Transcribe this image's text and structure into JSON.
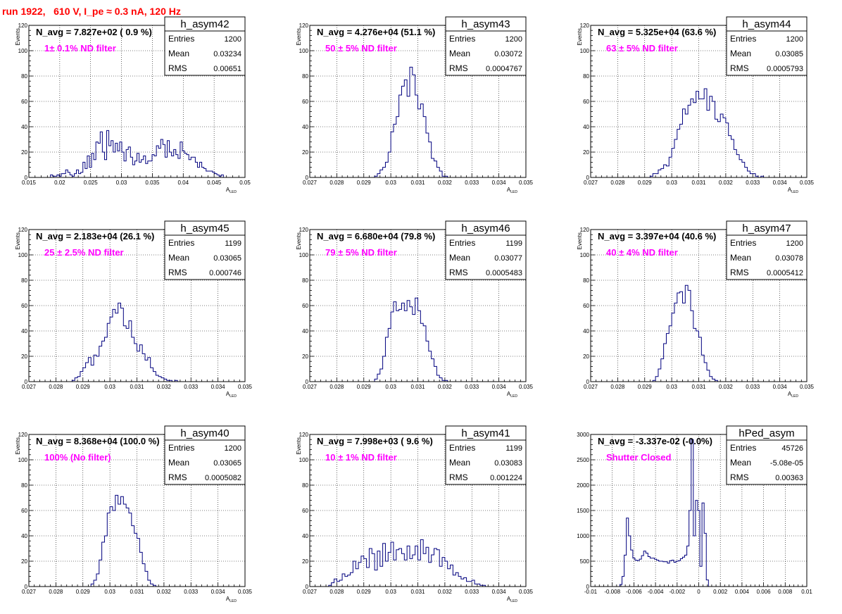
{
  "page_title": "run 1922,   610 V, I_pe ≈ 0.3 nA, 120 Hz",
  "colors": {
    "histogram": "#00007f",
    "annotation": "#ff00ff",
    "title": "#ff0000",
    "grid": "#000000"
  },
  "chart_data": [
    {
      "type": "histogram",
      "name": "h_asym42",
      "stats": [
        [
          "Entries",
          "1200"
        ],
        [
          "Mean",
          "0.03234"
        ],
        [
          "RMS",
          "0.00651"
        ]
      ],
      "navg_label": "N_avg = 7.827e+02 ( 0.9 %)",
      "filter_label": "1± 0.1% ND filter",
      "xlabel": "A_LED",
      "ylabel": "Events",
      "xlim": [
        0.015,
        0.05
      ],
      "ylim": [
        0,
        120
      ],
      "xticks": [
        "0.015",
        "0.02",
        "0.025",
        "0.03",
        "0.035",
        "0.04",
        "0.045",
        "0.05"
      ],
      "yticks": [
        "0",
        "20",
        "40",
        "60",
        "80",
        "100",
        "120"
      ],
      "grid": true,
      "binned_from": 0.0185,
      "bin_width": 0.00035,
      "counts": [
        2,
        1,
        1,
        2,
        1,
        3,
        3,
        6,
        4,
        2,
        1,
        3,
        6,
        3,
        4,
        12,
        7,
        17,
        8,
        19,
        14,
        28,
        27,
        36,
        20,
        14,
        37,
        25,
        29,
        20,
        27,
        21,
        28,
        20,
        13,
        22,
        24,
        16,
        10,
        13,
        19,
        12,
        14,
        17,
        11,
        13,
        13,
        18,
        17,
        25,
        23,
        30,
        26,
        16,
        29,
        20,
        17,
        22,
        18,
        15,
        28,
        21,
        19,
        18,
        14,
        16,
        16,
        12,
        8,
        12,
        8,
        7,
        5,
        5,
        5,
        4,
        3,
        2,
        1,
        2
      ]
    },
    {
      "type": "histogram",
      "name": "h_asym43",
      "stats": [
        [
          "Entries",
          "1200"
        ],
        [
          "Mean",
          "0.03072"
        ],
        [
          "RMS",
          "0.0004767"
        ]
      ],
      "navg_label": "N_avg = 4.276e+04 (51.1 %)",
      "filter_label": "50 ± 5% ND filter",
      "xlabel": "A_LED",
      "ylabel": "Events",
      "xlim": [
        0.027,
        0.035
      ],
      "ylim": [
        0,
        120
      ],
      "xticks": [
        "0.027",
        "0.028",
        "0.029",
        "0.03",
        "0.031",
        "0.032",
        "0.033",
        "0.034",
        "0.035"
      ],
      "yticks": [
        "0",
        "20",
        "40",
        "60",
        "80",
        "100",
        "120"
      ],
      "grid": true,
      "binned_from": 0.0294,
      "bin_width": 0.0001,
      "counts": [
        1,
        3,
        6,
        8,
        12,
        20,
        36,
        42,
        48,
        65,
        72,
        77,
        64,
        87,
        81,
        65,
        54,
        58,
        48,
        35,
        28,
        15,
        13,
        8,
        5,
        1,
        1,
        0,
        0,
        0
      ]
    },
    {
      "type": "histogram",
      "name": "h_asym44",
      "stats": [
        [
          "Entries",
          "1200"
        ],
        [
          "Mean",
          "0.03085"
        ],
        [
          "RMS",
          "0.0005793"
        ]
      ],
      "navg_label": "N_avg = 5.325e+04 (63.6 %)",
      "filter_label": "63 ± 5% ND filter",
      "xlabel": "A_LED",
      "ylabel": "Events",
      "xlim": [
        0.027,
        0.035
      ],
      "ylim": [
        0,
        120
      ],
      "xticks": [
        "0.027",
        "0.028",
        "0.029",
        "0.03",
        "0.031",
        "0.032",
        "0.033",
        "0.034",
        "0.035"
      ],
      "yticks": [
        "0",
        "20",
        "40",
        "60",
        "80",
        "100",
        "120"
      ],
      "grid": true,
      "binned_from": 0.0292,
      "bin_width": 0.0001,
      "counts": [
        1,
        3,
        3,
        6,
        7,
        10,
        9,
        16,
        23,
        30,
        38,
        42,
        54,
        50,
        57,
        62,
        59,
        68,
        62,
        62,
        70,
        53,
        64,
        60,
        46,
        44,
        50,
        47,
        43,
        33,
        30,
        22,
        18,
        14,
        12,
        8,
        5,
        3,
        3,
        1,
        0,
        1
      ]
    },
    {
      "type": "histogram",
      "name": "h_asym45",
      "stats": [
        [
          "Entries",
          "1199"
        ],
        [
          "Mean",
          "0.03065"
        ],
        [
          "RMS",
          "0.000746"
        ]
      ],
      "navg_label": "N_avg = 2.183e+04 (26.1 %)",
      "filter_label": "25 ± 2.5% ND filter",
      "xlabel": "A_LED",
      "ylabel": "Events",
      "xlim": [
        0.027,
        0.035
      ],
      "ylim": [
        0,
        120
      ],
      "xticks": [
        "0.027",
        "0.028",
        "0.029",
        "0.03",
        "0.031",
        "0.032",
        "0.033",
        "0.034",
        "0.035"
      ],
      "yticks": [
        "0",
        "20",
        "40",
        "60",
        "80",
        "100",
        "120"
      ],
      "grid": true,
      "binned_from": 0.0286,
      "bin_width": 0.0001,
      "counts": [
        1,
        3,
        4,
        8,
        11,
        15,
        19,
        13,
        21,
        20,
        28,
        32,
        35,
        46,
        51,
        57,
        54,
        62,
        58,
        44,
        42,
        48,
        35,
        30,
        24,
        29,
        22,
        17,
        19,
        11,
        8,
        5,
        4,
        3,
        2,
        1,
        1,
        0,
        1
      ]
    },
    {
      "type": "histogram",
      "name": "h_asym46",
      "stats": [
        [
          "Entries",
          "1199"
        ],
        [
          "Mean",
          "0.03077"
        ],
        [
          "RMS",
          "0.0005483"
        ]
      ],
      "navg_label": "N_avg = 6.680e+04 (79.8 %)",
      "filter_label": "79 ± 5% ND filter",
      "xlabel": "A_LED",
      "ylabel": "Events",
      "xlim": [
        0.027,
        0.035
      ],
      "ylim": [
        0,
        120
      ],
      "xticks": [
        "0.027",
        "0.028",
        "0.029",
        "0.03",
        "0.031",
        "0.032",
        "0.033",
        "0.034",
        "0.035"
      ],
      "yticks": [
        "0",
        "20",
        "40",
        "60",
        "80",
        "100",
        "120"
      ],
      "grid": true,
      "binned_from": 0.0294,
      "bin_width": 0.0001,
      "counts": [
        2,
        6,
        10,
        20,
        35,
        42,
        55,
        63,
        56,
        57,
        62,
        56,
        64,
        59,
        53,
        66,
        56,
        46,
        44,
        32,
        24,
        18,
        12,
        5,
        3,
        1,
        1,
        0
      ]
    },
    {
      "type": "histogram",
      "name": "h_asym47",
      "stats": [
        [
          "Entries",
          "1200"
        ],
        [
          "Mean",
          "0.03078"
        ],
        [
          "RMS",
          "0.0005412"
        ]
      ],
      "navg_label": "N_avg = 3.397e+04 (40.6 %)",
      "filter_label": "40 ± 4% ND filter",
      "xlabel": "A_LED",
      "ylabel": "Events",
      "xlim": [
        0.027,
        0.035
      ],
      "ylim": [
        0,
        120
      ],
      "xticks": [
        "0.027",
        "0.028",
        "0.029",
        "0.03",
        "0.031",
        "0.032",
        "0.033",
        "0.034",
        "0.035"
      ],
      "yticks": [
        "0",
        "20",
        "40",
        "60",
        "80",
        "100",
        "120"
      ],
      "grid": true,
      "binned_from": 0.0293,
      "bin_width": 0.0001,
      "counts": [
        1,
        4,
        10,
        18,
        30,
        38,
        44,
        54,
        62,
        70,
        71,
        62,
        76,
        72,
        56,
        42,
        40,
        35,
        21,
        15,
        9,
        4,
        2,
        1,
        0
      ]
    },
    {
      "type": "histogram",
      "name": "h_asym40",
      "stats": [
        [
          "Entries",
          "1200"
        ],
        [
          "Mean",
          "0.03065"
        ],
        [
          "RMS",
          "0.0005082"
        ]
      ],
      "navg_label": "N_avg = 8.368e+04 (100.0 %)",
      "filter_label": "100% (No filter)",
      "xlabel": "A_LED",
      "ylabel": "Events",
      "xlim": [
        0.027,
        0.035
      ],
      "ylim": [
        0,
        120
      ],
      "xticks": [
        "0.027",
        "0.028",
        "0.029",
        "0.03",
        "0.031",
        "0.032",
        "0.033",
        "0.034",
        "0.035"
      ],
      "yticks": [
        "0",
        "20",
        "40",
        "60",
        "80",
        "100",
        "120"
      ],
      "grid": true,
      "binned_from": 0.0293,
      "bin_width": 0.0001,
      "counts": [
        2,
        5,
        10,
        21,
        35,
        40,
        58,
        63,
        60,
        72,
        65,
        71,
        65,
        62,
        58,
        48,
        42,
        38,
        27,
        18,
        12,
        5,
        2,
        1
      ]
    },
    {
      "type": "histogram",
      "name": "h_asym41",
      "stats": [
        [
          "Entries",
          "1199"
        ],
        [
          "Mean",
          "0.03083"
        ],
        [
          "RMS",
          "0.001224"
        ]
      ],
      "navg_label": "N_avg = 7.998e+03 ( 9.6 %)",
      "filter_label": "10 ± 1% ND filter",
      "xlabel": "A_LED",
      "ylabel": "Events",
      "xlim": [
        0.027,
        0.035
      ],
      "ylim": [
        0,
        120
      ],
      "xticks": [
        "0.027",
        "0.028",
        "0.029",
        "0.03",
        "0.031",
        "0.032",
        "0.033",
        "0.034",
        "0.035"
      ],
      "yticks": [
        "0",
        "20",
        "40",
        "60",
        "80",
        "100",
        "120"
      ],
      "grid": true,
      "binned_from": 0.0277,
      "bin_width": 0.0001,
      "counts": [
        1,
        3,
        6,
        4,
        5,
        10,
        8,
        9,
        11,
        20,
        14,
        19,
        24,
        22,
        15,
        30,
        26,
        13,
        28,
        16,
        34,
        20,
        27,
        35,
        21,
        29,
        30,
        26,
        21,
        32,
        22,
        25,
        32,
        21,
        37,
        26,
        31,
        19,
        25,
        30,
        29,
        16,
        23,
        20,
        14,
        17,
        9,
        11,
        8,
        6,
        7,
        4,
        4,
        5,
        2,
        2,
        1,
        1,
        0
      ]
    },
    {
      "type": "histogram",
      "name": "hPed_asym",
      "stats": [
        [
          "Entries",
          "45726"
        ],
        [
          "Mean",
          "-5.08e-05"
        ],
        [
          "RMS",
          "0.00363"
        ]
      ],
      "navg_label": "N_avg = -3.337e-02 (-0.0%)",
      "filter_label": "Shutter Closed",
      "xlabel": "",
      "ylabel": "",
      "xlim": [
        -0.01,
        0.01
      ],
      "ylim": [
        0,
        3000
      ],
      "xticks": [
        "-0.01",
        "-0.008",
        "-0.006",
        "-0.004",
        "-0.002",
        "0",
        "0.002",
        "0.004",
        "0.006",
        "0.008",
        "0.01"
      ],
      "yticks": [
        "0",
        "500",
        "1000",
        "1500",
        "2000",
        "2500",
        "3000"
      ],
      "grid": true,
      "binned_from": -0.0073,
      "bin_width": 0.0002,
      "counts": [
        40,
        200,
        620,
        1350,
        1000,
        720,
        560,
        520,
        510,
        540,
        610,
        700,
        660,
        590,
        560,
        560,
        540,
        520,
        500,
        500,
        490,
        490,
        460,
        510,
        520,
        480,
        500,
        510,
        550,
        580,
        620,
        800,
        1500,
        2900,
        1000,
        1700,
        1500,
        400,
        1650,
        1050,
        130
      ]
    }
  ]
}
